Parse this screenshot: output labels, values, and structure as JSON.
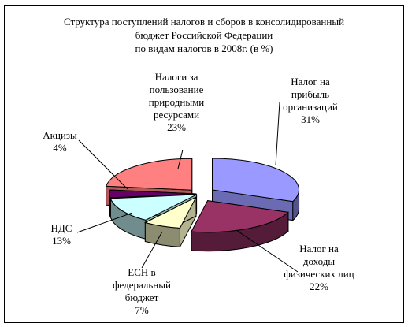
{
  "chart_data": {
    "type": "pie",
    "title_lines": [
      "Структура поступлений налогов и сборов в консолидированный",
      "бюджет Российской Федерации",
      "по видам налогов в 2008г. (в %)"
    ],
    "slices": [
      {
        "lines": [
          "Налог на",
          "прибыль",
          "организаций"
        ],
        "value": "31%",
        "numeric": 31,
        "color": "#9999ff"
      },
      {
        "lines": [
          "Налог на",
          "доходы",
          "физических лиц"
        ],
        "value": "22%",
        "numeric": 22,
        "color": "#993366"
      },
      {
        "lines": [
          "ЕСН в",
          "федеральный",
          "бюджет"
        ],
        "value": "7%",
        "numeric": 7,
        "color": "#ffffcc"
      },
      {
        "lines": [
          "НДС"
        ],
        "value": "13%",
        "numeric": 13,
        "color": "#ccffff"
      },
      {
        "lines": [
          "Акцизы"
        ],
        "value": "4%",
        "numeric": 4,
        "color": "#660066"
      },
      {
        "lines": [
          "Налоги за",
          "пользование",
          "природными",
          "ресурсами"
        ],
        "value": "23%",
        "numeric": 23,
        "color": "#ff8080"
      }
    ],
    "legend": "none",
    "style": "3d-exploded-pie"
  }
}
